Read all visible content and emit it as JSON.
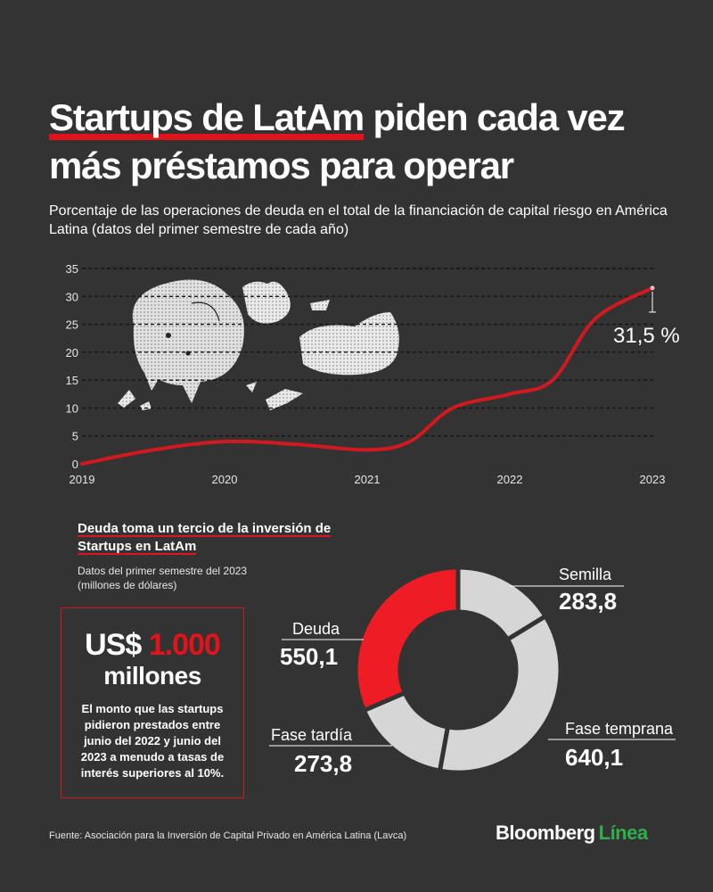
{
  "title_highlight": "Startups de LatAm",
  "title_rest": " piden cada vez más préstamos para operar",
  "subtitle": "Porcentaje de las operaciones de deuda en el total de la financiación de capital riesgo en América Latina (datos del primer semestre de cada año)",
  "chart_data": [
    {
      "type": "line",
      "x": [
        2019,
        2019.5,
        2020,
        2020.5,
        2021,
        2021.3,
        2021.6,
        2022,
        2022.3,
        2022.6,
        2023
      ],
      "x_ticks": [
        "2019",
        "2020",
        "2021",
        "2022",
        "2023"
      ],
      "y_ticks": [
        "0",
        "5",
        "10",
        "15",
        "20",
        "25",
        "30",
        "35"
      ],
      "ylim": [
        0,
        35
      ],
      "series": [
        {
          "values": [
            0,
            2.5,
            4,
            3.5,
            2.5,
            4,
            10,
            12.5,
            15,
            26,
            31.5
          ],
          "color": "#d11a1f"
        }
      ],
      "end_label": "31,5 %",
      "grid": true
    },
    {
      "type": "pie",
      "donut": true,
      "title": "Deuda toma un tercio de la inversión de Startups en LatAm",
      "note": "Datos del primer semestre del 2023 (millones de dólares)",
      "slices": [
        {
          "label": "Semilla",
          "value_label": "283,8",
          "value": 283.8,
          "color": "#d6d6d6"
        },
        {
          "label": "Fase temprana",
          "value_label": "640,1",
          "value": 640.1,
          "color": "#d6d6d6"
        },
        {
          "label": "Fase tardía",
          "value_label": "273,8",
          "value": 273.8,
          "color": "#d6d6d6"
        },
        {
          "label": "Deuda",
          "value_label": "550,1",
          "value": 550.1,
          "color": "#ee1c24"
        }
      ]
    }
  ],
  "callout": {
    "prefix": "US$ ",
    "amount": "1.000",
    "unit": "millones",
    "description": "El monto que las startups pidieron prestados entre junio del 2022 y junio del 2023 a menudo a tasas de interés superiores al 10%."
  },
  "source": "Fuente: Asociación para la Inversión de Capital Privado en América Latina (Lavca)",
  "brand": {
    "name": "Bloomberg",
    "suffix": "Línea"
  }
}
